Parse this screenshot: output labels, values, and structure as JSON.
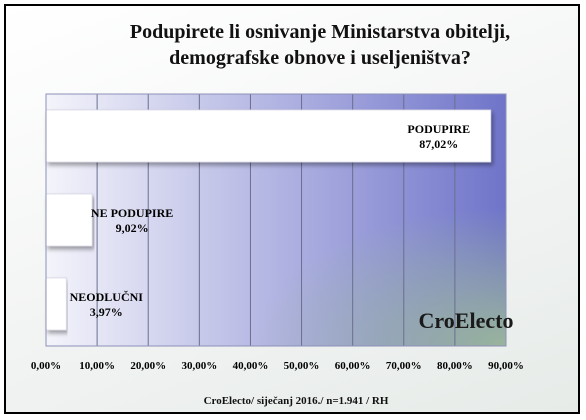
{
  "chart_data": {
    "type": "bar",
    "orientation": "horizontal",
    "title_lines": [
      "Podupirete li osnivanje Ministarstva obitelji,",
      "demografske obnove i useljeništva?"
    ],
    "categories": [
      "PODUPIRE",
      "NE PODUPIRE",
      "NEODLUČNI"
    ],
    "values": [
      87.02,
      9.02,
      3.97
    ],
    "data_labels": [
      "87,02%",
      "9,02%",
      "3,97%"
    ],
    "xlim": [
      0,
      90
    ],
    "x_ticks": [
      "0,00%",
      "10,00%",
      "20,00%",
      "30,00%",
      "40,00%",
      "50,00%",
      "60,00%",
      "70,00%",
      "80,00%",
      "90,00%"
    ],
    "grid": true,
    "legend": "none",
    "watermark": "CroElecto",
    "footer": "CroElecto/ siječanj 2016./ n=1.941 / RH"
  },
  "colors": {
    "bar_fill": "#ffffff",
    "plot_bg_start": "#f4f4fb",
    "plot_bg_end": "#6f74c9",
    "plot_corner": "#9bb89a",
    "grid": "#6a6f8e"
  }
}
